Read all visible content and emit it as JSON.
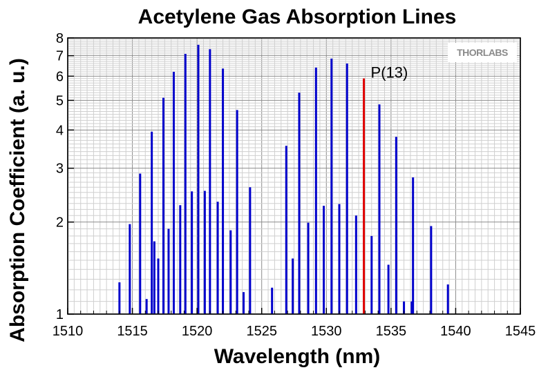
{
  "chart_data": {
    "type": "bar",
    "title": "Acetylene Gas Absorption Lines",
    "xlabel": "Wavelength (nm)",
    "ylabel": "Absorption Coefficient (a. u.)",
    "xlim": [
      1510,
      1545
    ],
    "ylim": [
      1,
      8
    ],
    "yscale": "log",
    "grid": true,
    "xticks": [
      1510,
      1515,
      1520,
      1525,
      1530,
      1535,
      1540,
      1545
    ],
    "yticks": [
      1,
      2,
      3,
      4,
      5,
      6,
      7,
      8
    ],
    "series_color": "#0000cc",
    "highlight_color": "#e00000",
    "lines": [
      {
        "x": 1514.0,
        "y": 1.27
      },
      {
        "x": 1514.8,
        "y": 1.97
      },
      {
        "x": 1515.6,
        "y": 2.88
      },
      {
        "x": 1516.1,
        "y": 1.12
      },
      {
        "x": 1516.5,
        "y": 3.95
      },
      {
        "x": 1516.7,
        "y": 1.73
      },
      {
        "x": 1517.0,
        "y": 1.52
      },
      {
        "x": 1517.4,
        "y": 5.1
      },
      {
        "x": 1517.8,
        "y": 1.9
      },
      {
        "x": 1518.2,
        "y": 6.2
      },
      {
        "x": 1518.7,
        "y": 2.27
      },
      {
        "x": 1519.1,
        "y": 7.1
      },
      {
        "x": 1519.6,
        "y": 2.52
      },
      {
        "x": 1520.1,
        "y": 7.6
      },
      {
        "x": 1520.6,
        "y": 2.53
      },
      {
        "x": 1521.0,
        "y": 7.35
      },
      {
        "x": 1521.6,
        "y": 2.33
      },
      {
        "x": 1522.0,
        "y": 6.35
      },
      {
        "x": 1522.6,
        "y": 1.88
      },
      {
        "x": 1523.1,
        "y": 4.65
      },
      {
        "x": 1523.6,
        "y": 1.18
      },
      {
        "x": 1524.1,
        "y": 2.6
      },
      {
        "x": 1525.8,
        "y": 1.22
      },
      {
        "x": 1526.9,
        "y": 3.55
      },
      {
        "x": 1527.4,
        "y": 1.52
      },
      {
        "x": 1527.9,
        "y": 5.3
      },
      {
        "x": 1528.6,
        "y": 1.99
      },
      {
        "x": 1529.2,
        "y": 6.4
      },
      {
        "x": 1529.8,
        "y": 2.26
      },
      {
        "x": 1530.4,
        "y": 6.85
      },
      {
        "x": 1531.0,
        "y": 2.29
      },
      {
        "x": 1531.6,
        "y": 6.6
      },
      {
        "x": 1532.3,
        "y": 2.1
      },
      {
        "x": 1532.9,
        "y": 5.9,
        "highlight": true
      },
      {
        "x": 1533.5,
        "y": 1.8
      },
      {
        "x": 1534.1,
        "y": 4.85
      },
      {
        "x": 1534.8,
        "y": 1.45
      },
      {
        "x": 1535.4,
        "y": 3.8
      },
      {
        "x": 1536.0,
        "y": 1.1
      },
      {
        "x": 1536.7,
        "y": 2.8
      },
      {
        "x": 1538.1,
        "y": 1.94
      },
      {
        "x": 1539.4,
        "y": 1.25
      },
      {
        "x": 1536.6,
        "y": 1.1
      }
    ],
    "annotations": [
      {
        "text": "P(13)",
        "x": 1532.9,
        "y": 5.9
      }
    ]
  },
  "logo": {
    "text": "THORLABS"
  }
}
